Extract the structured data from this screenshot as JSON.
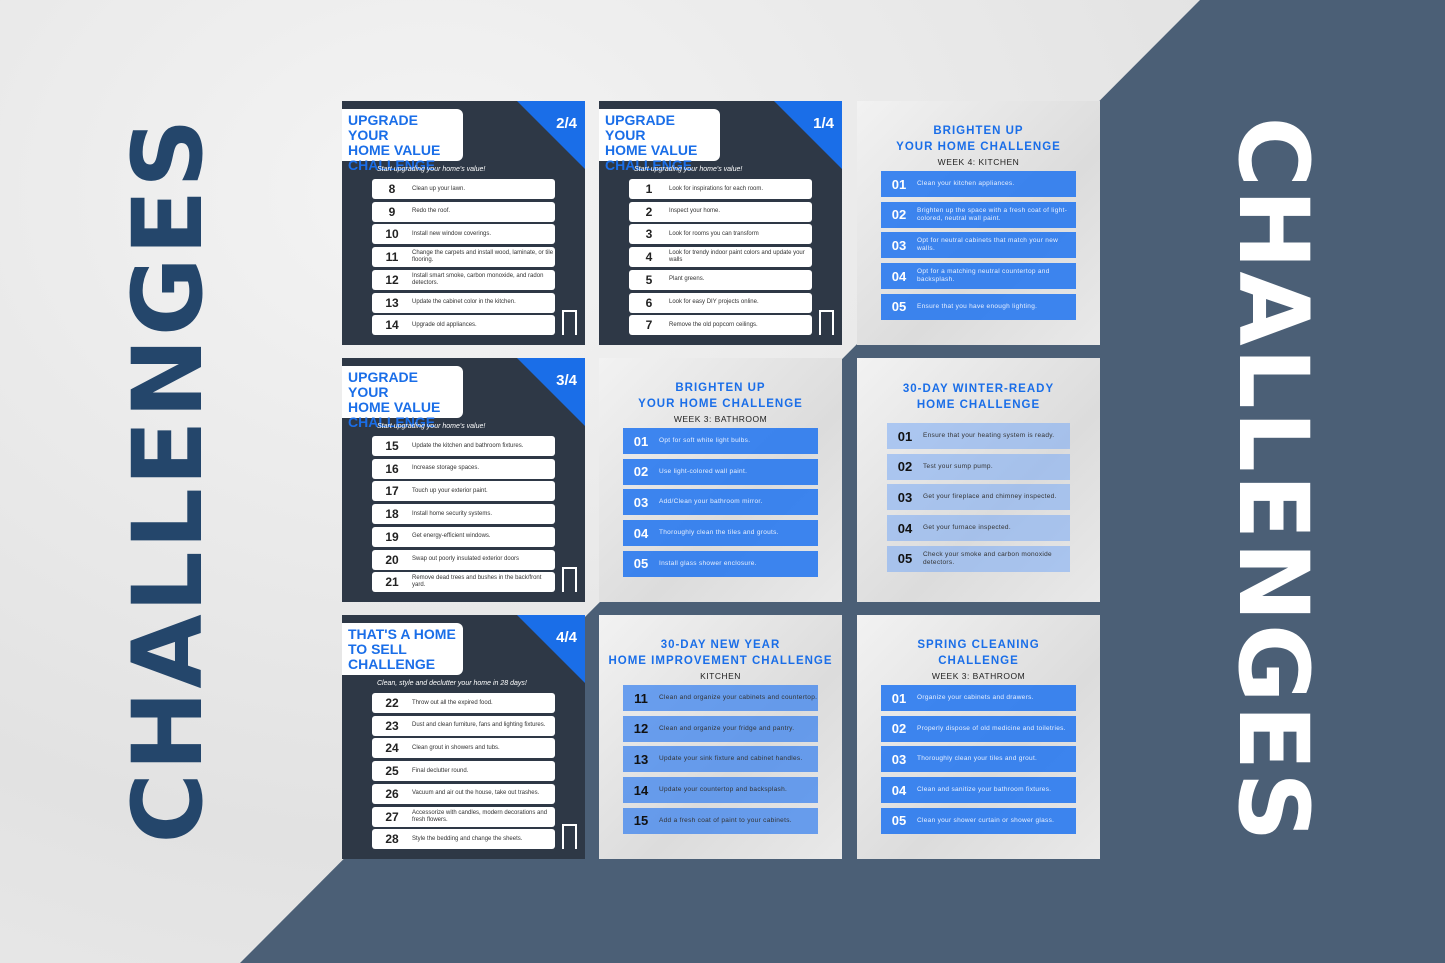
{
  "side_text_left": "CHALLENGES",
  "side_text_right": "CHALLENGES",
  "colors": {
    "accent": "#1a6ee8",
    "dark_card": "#2e3846",
    "slate": "#4b5f76",
    "side_text": "#24466b"
  },
  "cards": [
    {
      "type": "dark",
      "title": [
        "UPGRADE YOUR",
        "HOME VALUE",
        "CHALLENGE"
      ],
      "badge": "2/4",
      "subtitle": "Start upgrading your home's value!",
      "items": [
        {
          "n": "8",
          "t": "Clean up your lawn."
        },
        {
          "n": "9",
          "t": "Redo the roof."
        },
        {
          "n": "10",
          "t": "Install new window coverings."
        },
        {
          "n": "11",
          "t": "Change the carpets and install wood, laminate, or tile flooring."
        },
        {
          "n": "12",
          "t": "Install smart smoke, carbon monoxide, and radon detectors."
        },
        {
          "n": "13",
          "t": "Update the cabinet color in the kitchen."
        },
        {
          "n": "14",
          "t": "Upgrade old appliances."
        }
      ]
    },
    {
      "type": "dark",
      "title": [
        "UPGRADE YOUR",
        "HOME VALUE",
        "CHALLENGE"
      ],
      "badge": "1/4",
      "subtitle": "Start upgrading your home's value!",
      "items": [
        {
          "n": "1",
          "t": "Look for inspirations for each room."
        },
        {
          "n": "2",
          "t": "Inspect your home."
        },
        {
          "n": "3",
          "t": "Look for rooms you can transform"
        },
        {
          "n": "4",
          "t": "Look for trendy indoor paint colors and update your walls"
        },
        {
          "n": "5",
          "t": "Plant greens."
        },
        {
          "n": "6",
          "t": "Look for easy DIY projects online."
        },
        {
          "n": "7",
          "t": "Remove the old popcorn ceilings."
        }
      ]
    },
    {
      "type": "light",
      "title": [
        "BRIGHTEN UP",
        "YOUR HOME CHALLENGE"
      ],
      "subtitle": "WEEK 4: KITCHEN",
      "items": [
        {
          "n": "01",
          "t": "Clean your kitchen appliances."
        },
        {
          "n": "02",
          "t": "Brighten up the space with a fresh coat of light-colored, neutral wall paint."
        },
        {
          "n": "03",
          "t": "Opt for neutral cabinets that match your new walls."
        },
        {
          "n": "04",
          "t": "Opt for a matching neutral countertop and backsplash."
        },
        {
          "n": "05",
          "t": "Ensure that you have enough lighting."
        }
      ]
    },
    {
      "type": "dark",
      "title": [
        "UPGRADE YOUR",
        "HOME VALUE",
        "CHALLENGE"
      ],
      "badge": "3/4",
      "subtitle": "Start upgrading your home's value!",
      "items": [
        {
          "n": "15",
          "t": "Update the kitchen and bathroom fixtures."
        },
        {
          "n": "16",
          "t": "Increase storage spaces."
        },
        {
          "n": "17",
          "t": "Touch up your exterior paint."
        },
        {
          "n": "18",
          "t": "Install home security systems."
        },
        {
          "n": "19",
          "t": "Get energy-efficient windows."
        },
        {
          "n": "20",
          "t": "Swap out poorly insulated exterior doors"
        },
        {
          "n": "21",
          "t": "Remove dead trees and bushes in the back/front yard."
        }
      ]
    },
    {
      "type": "light",
      "title": [
        "BRIGHTEN UP",
        "YOUR HOME CHALLENGE"
      ],
      "subtitle": "WEEK 3: BATHROOM",
      "items": [
        {
          "n": "01",
          "t": "Opt for soft white light bulbs."
        },
        {
          "n": "02",
          "t": "Use light-colored wall paint."
        },
        {
          "n": "03",
          "t": "Add/Clean your bathroom mirror."
        },
        {
          "n": "04",
          "t": "Thoroughly clean the tiles and grouts."
        },
        {
          "n": "05",
          "t": "Install glass shower enclosure."
        }
      ]
    },
    {
      "type": "light",
      "variant": "v2",
      "title": [
        "30-DAY WINTER-READY",
        "HOME CHALLENGE"
      ],
      "subtitle": "",
      "items": [
        {
          "n": "01",
          "t": "Ensure that your heating system is ready."
        },
        {
          "n": "02",
          "t": "Test your sump pump."
        },
        {
          "n": "03",
          "t": "Get your fireplace and chimney inspected."
        },
        {
          "n": "04",
          "t": "Get your furnace inspected."
        },
        {
          "n": "05",
          "t": "Check your smoke and carbon monoxide detectors."
        }
      ]
    },
    {
      "type": "dark",
      "title": [
        "THAT'S A HOME",
        "TO SELL",
        "CHALLENGE"
      ],
      "badge": "4/4",
      "subtitle": "Clean, style and declutter your home in 28 days!",
      "items": [
        {
          "n": "22",
          "t": "Throw out all the expired food."
        },
        {
          "n": "23",
          "t": "Dust and clean furniture, fans and lighting fixtures."
        },
        {
          "n": "24",
          "t": "Clean grout in showers and tubs."
        },
        {
          "n": "25",
          "t": "Final declutter round."
        },
        {
          "n": "26",
          "t": "Vacuum and air out the house, take out trashes."
        },
        {
          "n": "27",
          "t": "Accessorize with candles, modern decorations and fresh flowers."
        },
        {
          "n": "28",
          "t": "Style the bedding and change the sheets."
        }
      ]
    },
    {
      "type": "light",
      "variant": "v3",
      "title": [
        "30-DAY NEW YEAR",
        "HOME IMPROVEMENT CHALLENGE"
      ],
      "subtitle": "KITCHEN",
      "items": [
        {
          "n": "11",
          "t": "Clean and organize your cabinets and countertop."
        },
        {
          "n": "12",
          "t": "Clean and organize your fridge and pantry."
        },
        {
          "n": "13",
          "t": "Update your sink fixture and cabinet handles."
        },
        {
          "n": "14",
          "t": "Update your countertop and backsplash."
        },
        {
          "n": "15",
          "t": "Add a fresh coat of paint to your cabinets."
        }
      ]
    },
    {
      "type": "light",
      "title": [
        "SPRING CLEANING",
        "CHALLENGE"
      ],
      "subtitle": "WEEK 3: BATHROOM",
      "items": [
        {
          "n": "01",
          "t": "Organize your cabinets and drawers."
        },
        {
          "n": "02",
          "t": "Properly dispose of old medicine and toiletries."
        },
        {
          "n": "03",
          "t": "Thoroughly clean your tiles and grout."
        },
        {
          "n": "04",
          "t": "Clean and sanitize your bathroom fixtures."
        },
        {
          "n": "05",
          "t": "Clean your shower curtain or shower glass."
        }
      ]
    }
  ]
}
